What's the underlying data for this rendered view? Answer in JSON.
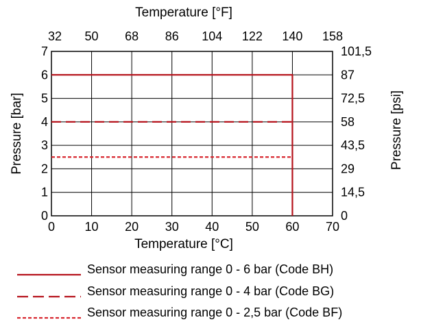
{
  "chart_data": {
    "type": "line",
    "x_bottom": {
      "label": "Temperature [°C]",
      "range": [
        0,
        70
      ],
      "ticks": [
        0,
        10,
        20,
        30,
        40,
        50,
        60,
        70
      ],
      "tick_labels": [
        "0",
        "10",
        "20",
        "30",
        "40",
        "50",
        "60",
        "70"
      ]
    },
    "x_top": {
      "label": "Temperature [°F]",
      "range": [
        32,
        158
      ],
      "tick_labels": [
        "32",
        "50",
        "68",
        "86",
        "104",
        "122",
        "140",
        "158"
      ]
    },
    "y_left": {
      "label": "Pressure [bar]",
      "range": [
        0,
        7
      ],
      "ticks": [
        0,
        1,
        2,
        3,
        4,
        5,
        6,
        7
      ],
      "tick_labels": [
        "0",
        "1",
        "2",
        "3",
        "4",
        "5",
        "6",
        "7"
      ]
    },
    "y_right": {
      "label": "Pressure [psi]",
      "tick_labels": [
        "0",
        "14,5",
        "29",
        "43,5",
        "58",
        "72,5",
        "87",
        "101,5"
      ]
    },
    "grid": true,
    "series": [
      {
        "name": "Sensor measuring range 0 - 6 bar (Code BH)",
        "style": "solid",
        "color": "#b5121b",
        "points": [
          [
            0,
            6
          ],
          [
            60,
            6
          ],
          [
            60,
            0
          ]
        ]
      },
      {
        "name": "Sensor measuring range 0 - 4 bar (Code BG)",
        "style": "dashed",
        "color": "#b5121b",
        "points": [
          [
            0,
            4
          ],
          [
            60,
            4
          ]
        ]
      },
      {
        "name": "Sensor measuring range 0 - 2,5 bar (Code BF)",
        "style": "dotted",
        "color": "#d7262e",
        "points": [
          [
            0,
            2.5
          ],
          [
            60,
            2.5
          ]
        ]
      }
    ],
    "legend_placement": "bottom"
  }
}
